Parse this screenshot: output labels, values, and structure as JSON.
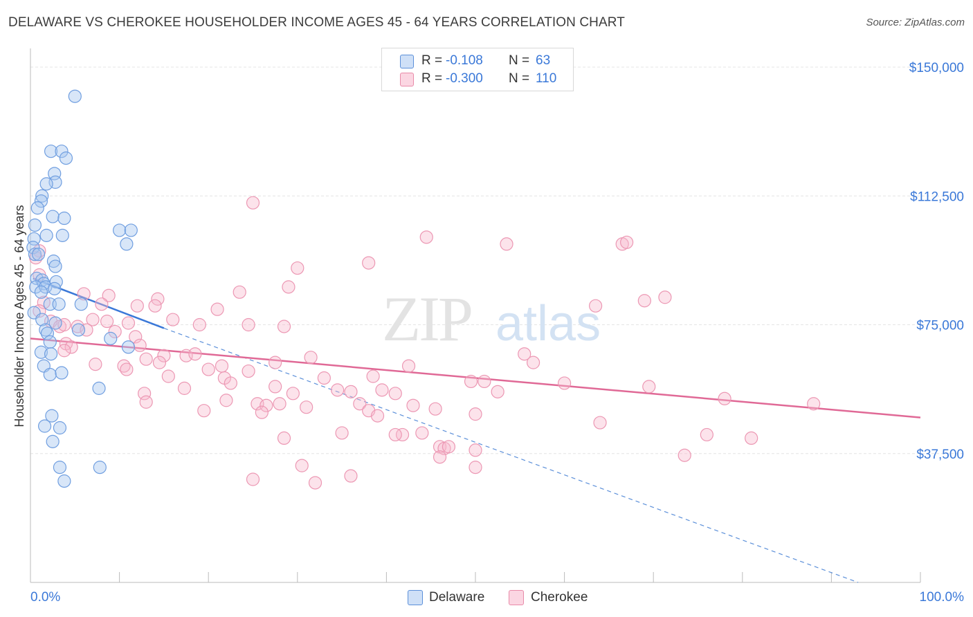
{
  "title": "DELAWARE VS CHEROKEE HOUSEHOLDER INCOME AGES 45 - 64 YEARS CORRELATION CHART",
  "source": "Source: ZipAtlas.com",
  "watermark": {
    "zip": "ZIP",
    "atlas": "atlas"
  },
  "legend": {
    "rows": [
      {
        "r_label": "R =",
        "r_value": "-0.108",
        "n_label": "N =",
        "n_value": "63",
        "color": "#a9c8f0",
        "border": "#5b8fd9"
      },
      {
        "r_label": "R =",
        "r_value": "-0.300",
        "n_label": "N =",
        "n_value": "110",
        "color": "#f7b8cc",
        "border": "#e88aa8"
      }
    ]
  },
  "bottom_legend": [
    {
      "label": "Delaware",
      "color": "#a9c8f0",
      "border": "#5b8fd9"
    },
    {
      "label": "Cherokee",
      "color": "#f7b8cc",
      "border": "#e88aa8"
    }
  ],
  "chart_data": {
    "type": "scatter",
    "xlabel": "",
    "ylabel": "Householder Income Ages 45 - 64 years",
    "x_tick_labels": [
      "0.0%",
      "100.0%"
    ],
    "y_tick_labels": [
      "$37,500",
      "$75,000",
      "$112,500",
      "$150,000"
    ],
    "y_ticks": [
      37500,
      75000,
      112500,
      150000
    ],
    "xlim": [
      0,
      100
    ],
    "ylim": [
      0,
      155000
    ],
    "grid": true,
    "colors": {
      "delaware": "#5b8fd9",
      "cherokee": "#e06996",
      "axis_text": "#3a78d8"
    },
    "series": [
      {
        "name": "Delaware",
        "trend": {
          "x": [
            0.3,
            15
          ],
          "y": [
            88500,
            74000
          ],
          "extended_to": [
            93,
            0
          ]
        },
        "points": [
          [
            5,
            141500
          ],
          [
            2.3,
            125500
          ],
          [
            3.5,
            125500
          ],
          [
            4,
            123500
          ],
          [
            2.7,
            119000
          ],
          [
            2.8,
            116500
          ],
          [
            1.8,
            116000
          ],
          [
            1.3,
            112500
          ],
          [
            1.2,
            111000
          ],
          [
            0.8,
            109000
          ],
          [
            2.5,
            106500
          ],
          [
            3.8,
            106000
          ],
          [
            0.5,
            104000
          ],
          [
            10,
            102500
          ],
          [
            11.3,
            102500
          ],
          [
            1.8,
            101000
          ],
          [
            3.6,
            101000
          ],
          [
            0.4,
            100000
          ],
          [
            10.8,
            98500
          ],
          [
            0.3,
            97500
          ],
          [
            0.5,
            95500
          ],
          [
            0.9,
            95500
          ],
          [
            2.6,
            93500
          ],
          [
            2.8,
            92000
          ],
          [
            0.7,
            88500
          ],
          [
            1.3,
            88000
          ],
          [
            1.5,
            87000
          ],
          [
            2.9,
            87500
          ],
          [
            0.6,
            86000
          ],
          [
            1.7,
            86000
          ],
          [
            2.7,
            85500
          ],
          [
            1.2,
            84500
          ],
          [
            2.2,
            81000
          ],
          [
            3.2,
            81000
          ],
          [
            0.4,
            78500
          ],
          [
            1.3,
            76500
          ],
          [
            5.7,
            81000
          ],
          [
            2.8,
            75500
          ],
          [
            1.7,
            73500
          ],
          [
            1.9,
            72500
          ],
          [
            5.4,
            73500
          ],
          [
            2.2,
            70000
          ],
          [
            9,
            71000
          ],
          [
            11,
            68500
          ],
          [
            1.2,
            67000
          ],
          [
            2.3,
            66500
          ],
          [
            1.5,
            63000
          ],
          [
            2.2,
            60500
          ],
          [
            3.5,
            61000
          ],
          [
            7.7,
            56500
          ],
          [
            2.4,
            48500
          ],
          [
            1.6,
            45500
          ],
          [
            3.3,
            45000
          ],
          [
            2.5,
            41000
          ],
          [
            3.3,
            33500
          ],
          [
            7.8,
            33500
          ],
          [
            3.8,
            29500
          ]
        ]
      },
      {
        "name": "Cherokee",
        "trend": {
          "x": [
            0,
            100
          ],
          "y": [
            71000,
            48000
          ]
        },
        "points": [
          [
            25,
            110500
          ],
          [
            44.5,
            100500
          ],
          [
            53.5,
            98500
          ],
          [
            66.5,
            98500
          ],
          [
            67,
            99000
          ],
          [
            1,
            96500
          ],
          [
            0.6,
            94500
          ],
          [
            30,
            91500
          ],
          [
            38,
            93000
          ],
          [
            1,
            89500
          ],
          [
            29,
            86000
          ],
          [
            23.5,
            84500
          ],
          [
            6,
            84000
          ],
          [
            8.8,
            83500
          ],
          [
            14.3,
            82500
          ],
          [
            69,
            82000
          ],
          [
            71.3,
            83000
          ],
          [
            1.5,
            81500
          ],
          [
            8,
            81000
          ],
          [
            12,
            80500
          ],
          [
            14,
            80500
          ],
          [
            63.5,
            80500
          ],
          [
            21,
            79500
          ],
          [
            1,
            79000
          ],
          [
            7,
            76500
          ],
          [
            8.6,
            76000
          ],
          [
            11,
            75500
          ],
          [
            16,
            76500
          ],
          [
            19,
            75000
          ],
          [
            24.5,
            75000
          ],
          [
            28.5,
            74500
          ],
          [
            2.3,
            76000
          ],
          [
            3.3,
            74500
          ],
          [
            3.8,
            75000
          ],
          [
            5.3,
            74500
          ],
          [
            6.3,
            73500
          ],
          [
            9.5,
            73000
          ],
          [
            11.8,
            71500
          ],
          [
            12.3,
            69000
          ],
          [
            4,
            69500
          ],
          [
            4.6,
            68500
          ],
          [
            3.8,
            67500
          ],
          [
            55.5,
            66500
          ],
          [
            15,
            66000
          ],
          [
            17.5,
            66000
          ],
          [
            18.5,
            66500
          ],
          [
            13,
            65000
          ],
          [
            14.5,
            64000
          ],
          [
            10.5,
            63000
          ],
          [
            7.3,
            63500
          ],
          [
            21.5,
            63000
          ],
          [
            27.5,
            64000
          ],
          [
            31.5,
            65500
          ],
          [
            42.5,
            63000
          ],
          [
            56.5,
            64000
          ],
          [
            20,
            62000
          ],
          [
            24.5,
            61500
          ],
          [
            10.8,
            62000
          ],
          [
            15.5,
            60000
          ],
          [
            21.8,
            59500
          ],
          [
            33,
            59500
          ],
          [
            38.5,
            60000
          ],
          [
            51,
            58500
          ],
          [
            49.5,
            58500
          ],
          [
            60,
            58000
          ],
          [
            69.5,
            57000
          ],
          [
            17.3,
            56500
          ],
          [
            22.5,
            58000
          ],
          [
            27.5,
            57000
          ],
          [
            34.5,
            56000
          ],
          [
            29.5,
            55000
          ],
          [
            36,
            55500
          ],
          [
            39.5,
            56000
          ],
          [
            52.5,
            55500
          ],
          [
            41,
            55000
          ],
          [
            12.8,
            55000
          ],
          [
            13,
            52500
          ],
          [
            22,
            53000
          ],
          [
            25.5,
            52000
          ],
          [
            26.5,
            51500
          ],
          [
            28,
            52000
          ],
          [
            31,
            51000
          ],
          [
            37,
            52000
          ],
          [
            43,
            51500
          ],
          [
            38,
            50000
          ],
          [
            39,
            48500
          ],
          [
            45.5,
            50500
          ],
          [
            19.5,
            50000
          ],
          [
            26,
            49500
          ],
          [
            50,
            49000
          ],
          [
            64,
            46500
          ],
          [
            78,
            53500
          ],
          [
            88,
            52000
          ],
          [
            76,
            43000
          ],
          [
            81,
            42000
          ],
          [
            44,
            43500
          ],
          [
            41.8,
            43000
          ],
          [
            35,
            43500
          ],
          [
            41,
            43000
          ],
          [
            28.5,
            42000
          ],
          [
            46,
            39500
          ],
          [
            46.5,
            39000
          ],
          [
            47,
            39500
          ],
          [
            50,
            38500
          ],
          [
            46,
            36500
          ],
          [
            30.5,
            34000
          ],
          [
            73.5,
            37000
          ],
          [
            50,
            33500
          ],
          [
            36,
            31000
          ],
          [
            25,
            30000
          ],
          [
            32,
            29000
          ]
        ]
      }
    ]
  }
}
